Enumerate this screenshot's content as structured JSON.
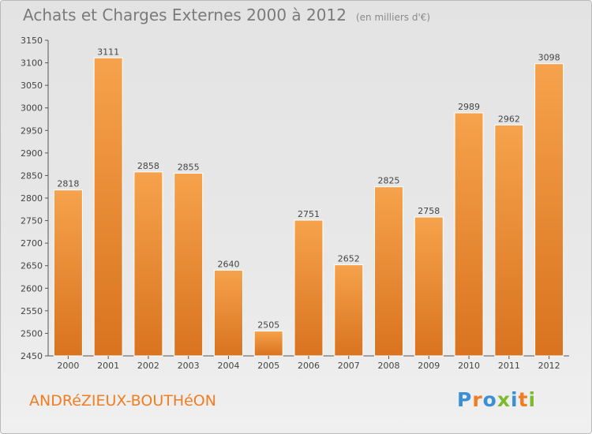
{
  "header": {
    "title": "Achats et Charges Externes 2000 à 2012",
    "unit": "(en milliers d'€)"
  },
  "footer": {
    "town": "ANDRéZIEUX-BOUTHéON",
    "brand": "Proxiti"
  },
  "colors": {
    "bar_light": "#f6a24c",
    "bar_dark": "#d9731f",
    "axis": "#555555",
    "text": "#444444",
    "town": "#f07d22"
  },
  "chart_data": {
    "type": "bar",
    "categories": [
      "2000",
      "2001",
      "2002",
      "2003",
      "2004",
      "2005",
      "2006",
      "2007",
      "2008",
      "2009",
      "2010",
      "2011",
      "2012"
    ],
    "values": [
      2818,
      3111,
      2858,
      2855,
      2640,
      2505,
      2751,
      2652,
      2825,
      2758,
      2989,
      2962,
      3098
    ],
    "ylim": [
      2450,
      3150
    ],
    "yticks": [
      2450,
      2500,
      2550,
      2600,
      2650,
      2700,
      2750,
      2800,
      2850,
      2900,
      2950,
      3000,
      3050,
      3100,
      3150
    ],
    "grid": false,
    "data_labels": true
  }
}
